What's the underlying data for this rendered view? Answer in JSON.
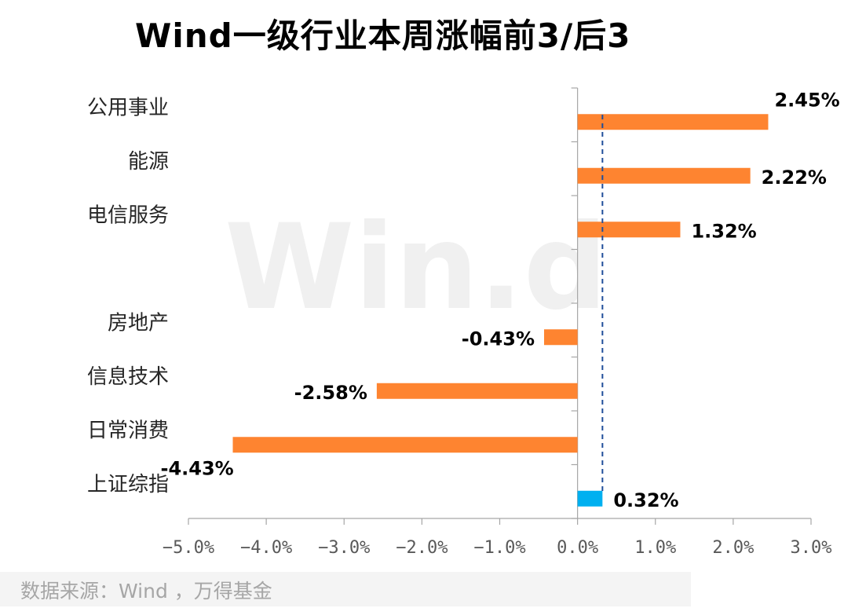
{
  "chart_data": {
    "type": "bar",
    "orientation": "horizontal",
    "title": "Wind一级行业本周涨幅前3/后3",
    "categories": [
      "公用事业",
      "能源",
      "电信服务",
      "",
      "房地产",
      "信息技术",
      "日常消费",
      "上证综指"
    ],
    "values": [
      2.45,
      2.22,
      1.32,
      null,
      -0.43,
      -2.58,
      -4.43,
      0.32
    ],
    "data_labels": [
      "2.45%",
      "2.22%",
      "1.32%",
      "",
      "-0.43%",
      "-2.58%",
      "-4.43%",
      "0.32%"
    ],
    "xlim": [
      -5.0,
      3.0
    ],
    "x_ticks": [
      -5,
      -4,
      -3,
      -2,
      -1,
      0,
      1,
      2,
      3
    ],
    "x_tick_labels": [
      "−5.0%",
      "−4.0%",
      "−3.0%",
      "−2.0%",
      "−1.0%",
      "0.0%",
      "1.0%",
      "2.0%",
      "3.0%"
    ],
    "reference_line": 0.32,
    "colors": {
      "industry": "#fe8430",
      "index": "#00b0f0",
      "reference": "#1f4e9a",
      "axis": "#a6a6a6",
      "watermark": "#e6e6e6"
    },
    "grid": false,
    "watermark": "Win.d",
    "source": "数据来源：Wind ，万得基金"
  }
}
